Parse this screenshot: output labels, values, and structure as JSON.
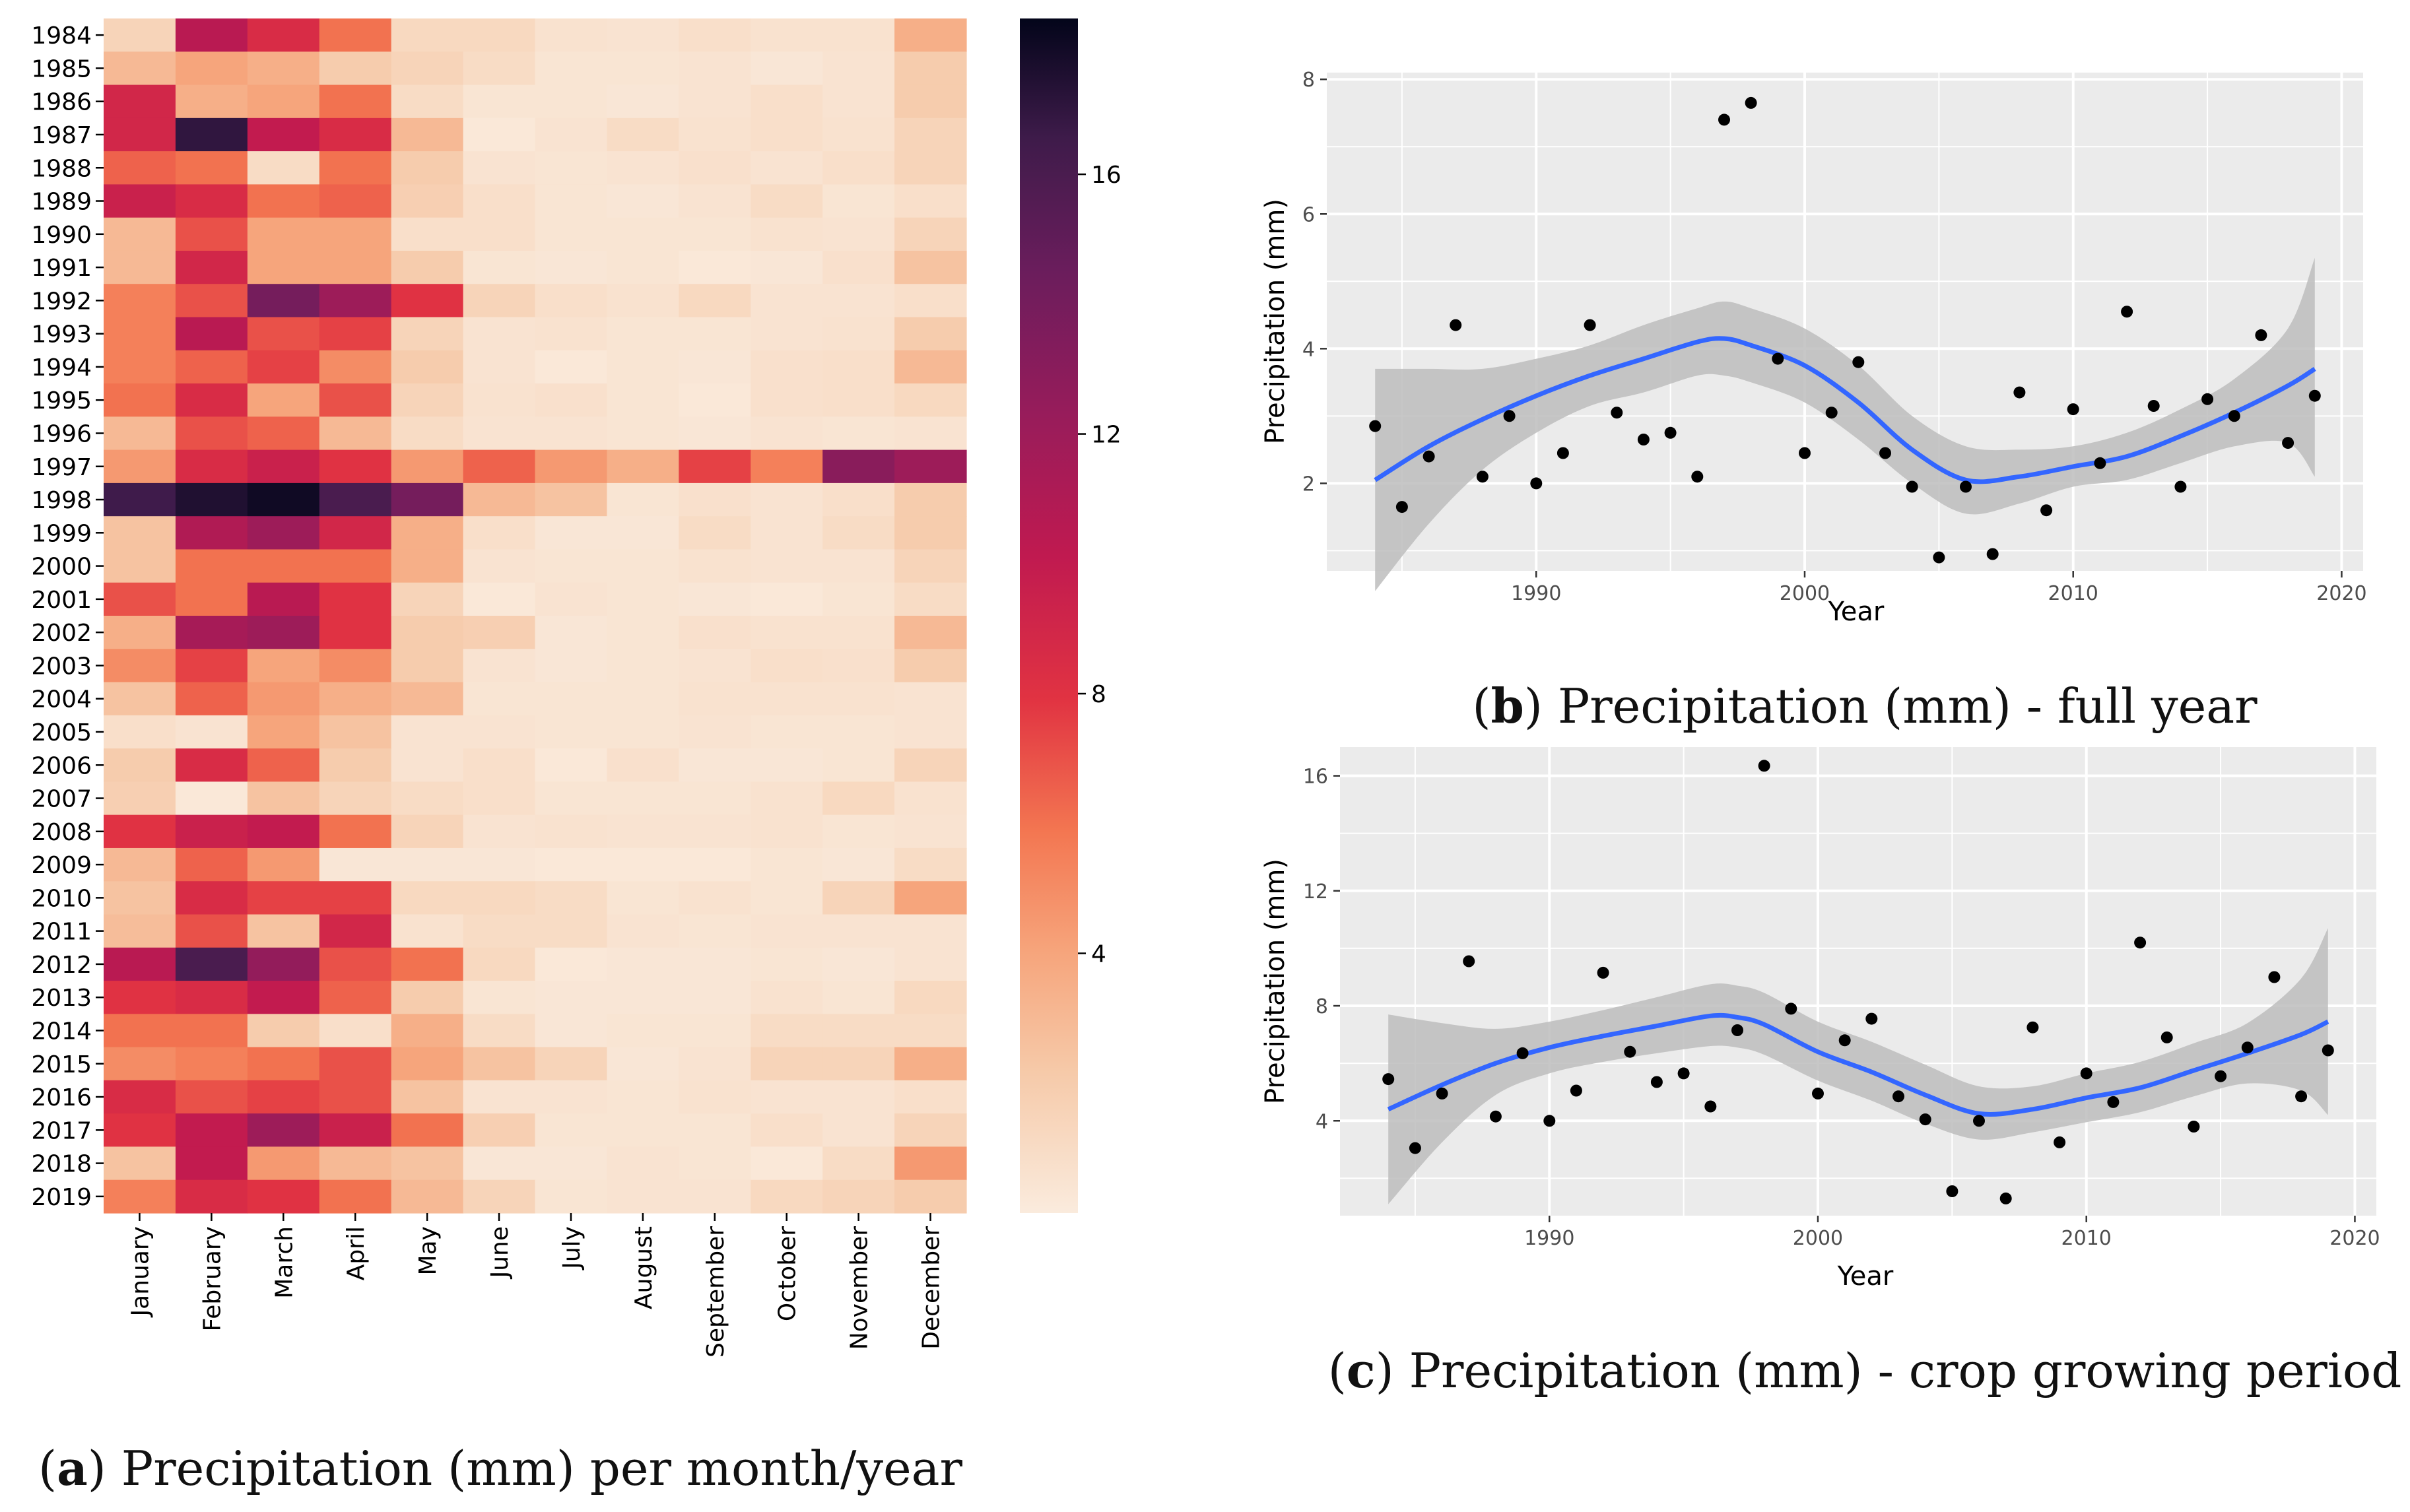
{
  "chart_data": [
    {
      "type": "heatmap",
      "caption": {
        "letter": "a",
        "text": "Precipitation (mm) per month/year"
      },
      "rows": [
        "1984",
        "1985",
        "1986",
        "1987",
        "1988",
        "1989",
        "1990",
        "1991",
        "1992",
        "1993",
        "1994",
        "1995",
        "1996",
        "1997",
        "1998",
        "1999",
        "2000",
        "2001",
        "2002",
        "2003",
        "2004",
        "2005",
        "2006",
        "2007",
        "2008",
        "2009",
        "2010",
        "2011",
        "2012",
        "2013",
        "2014",
        "2015",
        "2016",
        "2017",
        "2018",
        "2019"
      ],
      "columns": [
        "January",
        "February",
        "March",
        "April",
        "May",
        "June",
        "July",
        "August",
        "September",
        "October",
        "November",
        "December"
      ],
      "values": [
        [
          1.5,
          10.5,
          8.5,
          6.0,
          1.2,
          1.2,
          0.6,
          0.5,
          0.8,
          0.6,
          0.6,
          3.5
        ],
        [
          3.0,
          4.0,
          3.5,
          2.0,
          1.5,
          1.0,
          0.4,
          0.4,
          0.5,
          0.3,
          0.5,
          2.0
        ],
        [
          9.0,
          3.5,
          4.0,
          6.0,
          1.0,
          0.4,
          0.4,
          0.3,
          0.5,
          0.8,
          0.5,
          2.0
        ],
        [
          9.0,
          17.0,
          10.0,
          8.5,
          3.0,
          0.2,
          0.5,
          1.0,
          0.6,
          0.8,
          0.6,
          1.5
        ],
        [
          6.5,
          6.0,
          1.0,
          6.0,
          2.0,
          0.5,
          0.4,
          0.5,
          0.7,
          0.5,
          0.8,
          1.5
        ],
        [
          9.5,
          8.5,
          6.0,
          6.5,
          1.8,
          0.8,
          0.4,
          0.3,
          0.5,
          1.0,
          0.4,
          0.8
        ],
        [
          3.0,
          7.0,
          4.0,
          4.0,
          0.8,
          0.8,
          0.4,
          0.4,
          0.4,
          0.6,
          0.5,
          1.5
        ],
        [
          3.0,
          9.0,
          4.0,
          4.0,
          2.0,
          0.4,
          0.3,
          0.4,
          0.2,
          0.3,
          0.7,
          2.5
        ],
        [
          5.5,
          7.0,
          14.0,
          12.0,
          8.0,
          1.5,
          0.8,
          0.6,
          1.2,
          0.5,
          0.5,
          0.8
        ],
        [
          5.5,
          10.5,
          7.0,
          7.5,
          1.5,
          0.5,
          0.6,
          0.4,
          0.4,
          0.5,
          0.6,
          2.0
        ],
        [
          5.5,
          6.5,
          7.5,
          5.0,
          2.0,
          0.5,
          0.2,
          0.4,
          0.3,
          0.7,
          0.8,
          3.0
        ],
        [
          6.0,
          8.5,
          4.0,
          7.0,
          1.5,
          0.6,
          0.7,
          0.4,
          0.2,
          0.7,
          0.8,
          1.2
        ],
        [
          3.0,
          7.0,
          6.5,
          3.0,
          1.0,
          0.5,
          0.5,
          0.4,
          0.3,
          0.5,
          0.4,
          0.5
        ],
        [
          4.5,
          8.5,
          9.5,
          8.0,
          4.5,
          6.5,
          4.5,
          3.5,
          7.5,
          5.5,
          13.0,
          12.0
        ],
        [
          16.5,
          17.5,
          18.0,
          16.0,
          14.0,
          3.0,
          2.5,
          0.4,
          0.7,
          0.5,
          0.8,
          2.0
        ],
        [
          2.5,
          11.0,
          12.0,
          9.0,
          3.5,
          0.8,
          0.3,
          0.3,
          1.0,
          0.5,
          1.0,
          2.0
        ],
        [
          2.5,
          6.0,
          6.0,
          6.0,
          3.5,
          0.5,
          0.4,
          0.4,
          0.6,
          0.5,
          0.5,
          1.5
        ],
        [
          7.0,
          6.0,
          10.5,
          8.0,
          1.5,
          0.2,
          0.5,
          0.4,
          0.3,
          0.2,
          0.4,
          1.0
        ],
        [
          3.5,
          11.5,
          12.0,
          8.0,
          2.0,
          1.8,
          0.3,
          0.4,
          0.7,
          0.6,
          0.6,
          3.0
        ],
        [
          5.0,
          7.5,
          4.0,
          5.0,
          2.0,
          0.5,
          0.3,
          0.4,
          0.5,
          0.8,
          0.7,
          2.0
        ],
        [
          2.5,
          6.5,
          4.5,
          3.5,
          3.0,
          0.4,
          0.4,
          0.4,
          0.6,
          0.6,
          0.6,
          0.5
        ],
        [
          0.8,
          0.5,
          4.0,
          2.5,
          0.5,
          0.5,
          0.4,
          0.4,
          0.5,
          0.4,
          0.4,
          0.5
        ],
        [
          2.0,
          8.5,
          6.5,
          2.0,
          0.5,
          0.8,
          0.2,
          0.7,
          0.3,
          0.3,
          0.4,
          1.5
        ],
        [
          1.8,
          0.2,
          2.5,
          1.5,
          1.0,
          0.8,
          0.4,
          0.4,
          0.4,
          0.6,
          1.2,
          0.6
        ],
        [
          8.0,
          9.5,
          10.0,
          6.0,
          1.5,
          0.5,
          0.6,
          0.5,
          0.5,
          0.6,
          0.4,
          0.5
        ],
        [
          3.0,
          6.5,
          4.5,
          0.3,
          0.3,
          0.3,
          0.2,
          0.2,
          0.2,
          0.4,
          0.3,
          1.0
        ],
        [
          2.5,
          8.5,
          7.5,
          7.5,
          1.2,
          1.2,
          1.0,
          0.4,
          0.6,
          0.4,
          1.5,
          4.0
        ],
        [
          2.8,
          7.0,
          2.5,
          9.0,
          0.6,
          1.0,
          1.0,
          0.5,
          0.4,
          0.5,
          0.5,
          0.5
        ],
        [
          10.5,
          16.0,
          12.5,
          7.0,
          6.0,
          1.2,
          0.2,
          0.3,
          0.3,
          0.4,
          0.3,
          0.5
        ],
        [
          8.0,
          8.5,
          10.0,
          6.5,
          2.0,
          0.4,
          0.3,
          0.3,
          0.3,
          0.6,
          0.4,
          1.2
        ],
        [
          6.0,
          6.0,
          2.0,
          0.8,
          3.5,
          1.0,
          0.3,
          0.4,
          0.4,
          1.0,
          1.0,
          1.0
        ],
        [
          5.0,
          5.5,
          6.0,
          7.0,
          4.0,
          2.5,
          1.5,
          0.3,
          0.5,
          1.5,
          1.5,
          3.5
        ],
        [
          8.5,
          7.0,
          7.5,
          7.0,
          2.5,
          0.5,
          0.5,
          0.4,
          0.6,
          0.5,
          0.5,
          0.8
        ],
        [
          8.0,
          10.0,
          12.0,
          9.5,
          6.0,
          1.8,
          0.4,
          0.4,
          0.4,
          0.8,
          0.5,
          1.5
        ],
        [
          2.5,
          10.0,
          4.5,
          3.0,
          2.5,
          0.3,
          0.3,
          0.5,
          0.4,
          0.2,
          1.0,
          4.5
        ],
        [
          5.5,
          8.5,
          8.0,
          6.0,
          3.0,
          1.5,
          0.4,
          0.5,
          0.5,
          1.2,
          1.5,
          2.0
        ]
      ],
      "colorbar": {
        "min": 0,
        "max": 18.4,
        "ticks": [
          4,
          8,
          12,
          16
        ]
      }
    },
    {
      "type": "scatter",
      "caption": {
        "letter": "b",
        "text": "Precipitation (mm) - full year"
      },
      "xlabel": "Year",
      "ylabel": "Precipitation (mm)",
      "xlim": [
        1982.2,
        2020.8
      ],
      "ylim": [
        0.7,
        8.1
      ],
      "xticks": [
        1990,
        2000,
        2010,
        2020
      ],
      "yticks": [
        2,
        4,
        6,
        8
      ],
      "x": [
        1984,
        1985,
        1986,
        1987,
        1988,
        1989,
        1990,
        1991,
        1992,
        1993,
        1994,
        1995,
        1996,
        1997,
        1998,
        1999,
        2000,
        2001,
        2002,
        2003,
        2004,
        2005,
        2006,
        2007,
        2008,
        2009,
        2010,
        2011,
        2012,
        2013,
        2014,
        2015,
        2016,
        2017,
        2018,
        2019
      ],
      "y": [
        2.85,
        1.65,
        2.4,
        4.35,
        2.1,
        3.0,
        2.0,
        2.45,
        4.35,
        3.05,
        2.65,
        2.75,
        2.1,
        7.4,
        7.65,
        3.85,
        2.45,
        3.05,
        3.8,
        2.45,
        1.95,
        0.9,
        1.95,
        0.95,
        3.35,
        1.6,
        3.1,
        2.3,
        4.55,
        3.15,
        1.95,
        3.25,
        3.0,
        4.2,
        2.6,
        3.3
      ],
      "smooth": {
        "x": [
          1984,
          1986,
          1988,
          1990,
          1992,
          1994,
          1996,
          1997,
          1998,
          2000,
          2002,
          2004,
          2006,
          2008,
          2010,
          2012,
          2014,
          2016,
          2018,
          2019
        ],
        "y": [
          2.05,
          2.55,
          2.95,
          3.3,
          3.6,
          3.85,
          4.1,
          4.15,
          4.05,
          3.75,
          3.2,
          2.5,
          2.05,
          2.1,
          2.25,
          2.4,
          2.7,
          3.05,
          3.45,
          3.7
        ],
        "lower": [
          0.4,
          1.4,
          2.2,
          2.75,
          3.15,
          3.35,
          3.6,
          3.6,
          3.5,
          3.2,
          2.65,
          2.0,
          1.55,
          1.7,
          1.95,
          2.05,
          2.3,
          2.55,
          2.6,
          2.1
        ],
        "upper": [
          3.7,
          3.7,
          3.7,
          3.85,
          4.05,
          4.35,
          4.6,
          4.7,
          4.6,
          4.3,
          3.75,
          3.0,
          2.55,
          2.5,
          2.55,
          2.75,
          3.1,
          3.55,
          4.3,
          5.35
        ]
      }
    },
    {
      "type": "scatter",
      "caption": {
        "letter": "c",
        "text": "Precipitation (mm) - crop growing period"
      },
      "xlabel": "Year",
      "ylabel": "Precipitation (mm)",
      "xlim": [
        1982.2,
        2020.8
      ],
      "ylim": [
        0.7,
        17.0
      ],
      "xticks": [
        1990,
        2000,
        2010,
        2020
      ],
      "yticks": [
        4,
        8,
        12,
        16
      ],
      "x": [
        1984,
        1985,
        1986,
        1987,
        1988,
        1989,
        1990,
        1991,
        1992,
        1993,
        1994,
        1995,
        1996,
        1997,
        1998,
        1999,
        2000,
        2001,
        2002,
        2003,
        2004,
        2005,
        2006,
        2007,
        2008,
        2009,
        2010,
        2011,
        2012,
        2013,
        2014,
        2015,
        2016,
        2017,
        2018,
        2019
      ],
      "y": [
        5.45,
        3.05,
        4.95,
        9.55,
        4.15,
        6.35,
        4.0,
        5.05,
        9.15,
        6.4,
        5.35,
        5.65,
        4.5,
        7.15,
        16.35,
        7.9,
        4.95,
        6.8,
        7.55,
        4.85,
        4.05,
        1.55,
        4.0,
        1.3,
        7.25,
        3.25,
        5.65,
        4.65,
        10.2,
        6.9,
        3.8,
        5.55,
        6.55,
        9.0,
        4.85,
        6.45
      ],
      "smooth": {
        "x": [
          1984,
          1986,
          1988,
          1990,
          1992,
          1994,
          1996,
          1997,
          1998,
          2000,
          2002,
          2004,
          2006,
          2008,
          2010,
          2012,
          2014,
          2016,
          2018,
          2019
        ],
        "y": [
          4.4,
          5.25,
          6.0,
          6.55,
          6.95,
          7.3,
          7.65,
          7.6,
          7.35,
          6.4,
          5.7,
          4.9,
          4.25,
          4.4,
          4.8,
          5.15,
          5.75,
          6.35,
          7.0,
          7.45
        ],
        "lower": [
          1.1,
          3.25,
          4.9,
          5.65,
          6.05,
          6.35,
          6.6,
          6.55,
          6.3,
          5.4,
          4.7,
          3.9,
          3.35,
          3.6,
          3.95,
          4.3,
          4.85,
          5.3,
          5.05,
          4.2
        ],
        "upper": [
          7.7,
          7.4,
          7.2,
          7.45,
          7.85,
          8.3,
          8.75,
          8.7,
          8.45,
          7.45,
          6.75,
          5.95,
          5.2,
          5.2,
          5.65,
          6.05,
          6.7,
          7.4,
          8.95,
          10.7
        ]
      }
    }
  ]
}
